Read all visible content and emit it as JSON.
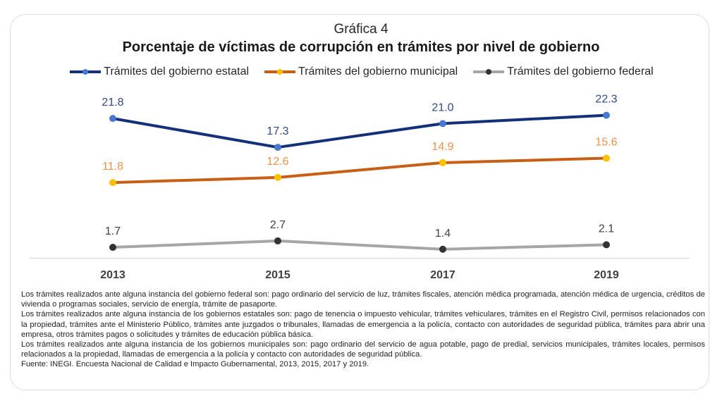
{
  "chart_data": {
    "type": "line",
    "label": "Gráfica 4",
    "title": "Porcentaje de víctimas de corrupción en trámites por nivel de gobierno",
    "xlabel": "",
    "ylabel": "",
    "categories": [
      "2013",
      "2015",
      "2017",
      "2019"
    ],
    "ylim": [
      0,
      25
    ],
    "grid": false,
    "legend_position": "top",
    "series": [
      {
        "name": "Trámites del gobierno estatal",
        "values": [
          21.8,
          17.3,
          21.0,
          22.3
        ],
        "labels": [
          "21.8",
          "17.3",
          "21.0",
          "22.3"
        ],
        "line_color": "#14307a",
        "marker_color": "#4a78d0",
        "label_color": "#2f4a8a"
      },
      {
        "name": "Trámites del gobierno municipal",
        "values": [
          11.8,
          12.6,
          14.9,
          15.6
        ],
        "labels": [
          "11.8",
          "12.6",
          "14.9",
          "15.6"
        ],
        "line_color": "#c85f16",
        "marker_color": "#ffc000",
        "label_color": "#f0904a"
      },
      {
        "name": "Trámites del gobierno federal",
        "values": [
          1.7,
          2.7,
          1.4,
          2.1
        ],
        "labels": [
          "1.7",
          "2.7",
          "1.4",
          "2.1"
        ],
        "line_color": "#a6a6a6",
        "marker_color": "#333333",
        "label_color": "#404040"
      }
    ]
  },
  "legend": {
    "items": [
      {
        "label": "Trámites del gobierno estatal"
      },
      {
        "label": "Trámites del gobierno municipal"
      },
      {
        "label": "Trámites del gobierno federal"
      }
    ]
  },
  "notes": [
    "Los trámites realizados ante alguna instancia del gobierno federal son: pago ordinario del servicio de luz, trámites fiscales, atención médica programada, atención médica de urgencia, créditos de vivienda o programas sociales, servicio de energía, trámite de pasaporte.",
    "Los trámites realizados ante alguna instancia de los gobiernos estatales son: pago de tenencia o impuesto vehicular, trámites vehiculares, trámites en el Registro Civil, permisos relacionados con la propiedad, trámites ante el Ministerio Público, trámites ante juzgados o tribunales, llamadas de emergencia a la policía, contacto con autoridades de seguridad pública, trámites para abrir una empresa, otros trámites pagos o solicitudes y trámites de educación pública básica.",
    "Los trámites realizados ante alguna instancia de los gobiernos municipales son: pago ordinario del servicio de agua potable, pago de predial, servicios municipales, trámites locales, permisos relacionados a la propiedad, llamadas de emergencia a la policía y contacto con autoridades de seguridad pública.",
    "Fuente: INEGI. Encuesta Nacional de Calidad e Impacto Gubernamental, 2013, 2015, 2017 y 2019."
  ]
}
